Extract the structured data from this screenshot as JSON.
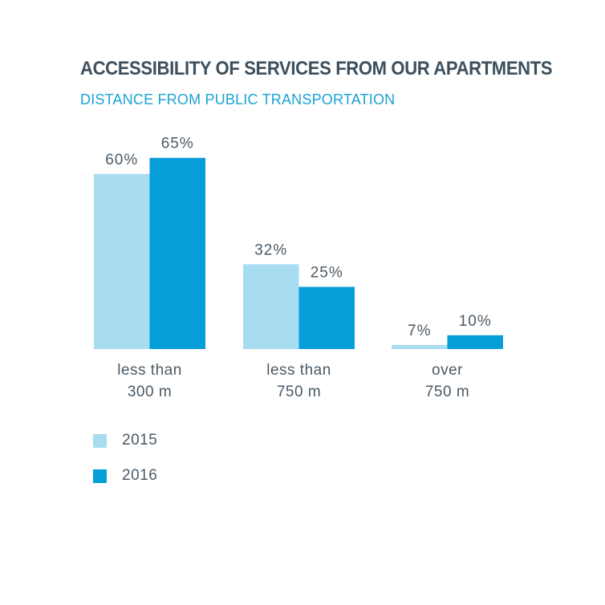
{
  "chart_data": {
    "type": "bar",
    "title": "ACCESSIBILITY OF SERVICES FROM OUR APARTMENTS",
    "subtitle": "DISTANCE FROM PUBLIC TRANSPORTATION",
    "xlabel": "",
    "ylabel": "",
    "categories": [
      [
        "less than",
        "300 m"
      ],
      [
        "less than",
        "750 m"
      ],
      [
        "over",
        "750 m"
      ]
    ],
    "series": [
      {
        "name": "2015",
        "color": "#a8dcf0",
        "values": [
          60,
          32,
          7
        ],
        "labels": [
          "60%",
          "32%",
          "7%"
        ]
      },
      {
        "name": "2016",
        "color": "#059ed9",
        "values": [
          65,
          25,
          10
        ],
        "labels": [
          "65%",
          "25%",
          "10%"
        ]
      }
    ],
    "unit": "%",
    "grid": false,
    "legend": "bottom-left"
  }
}
